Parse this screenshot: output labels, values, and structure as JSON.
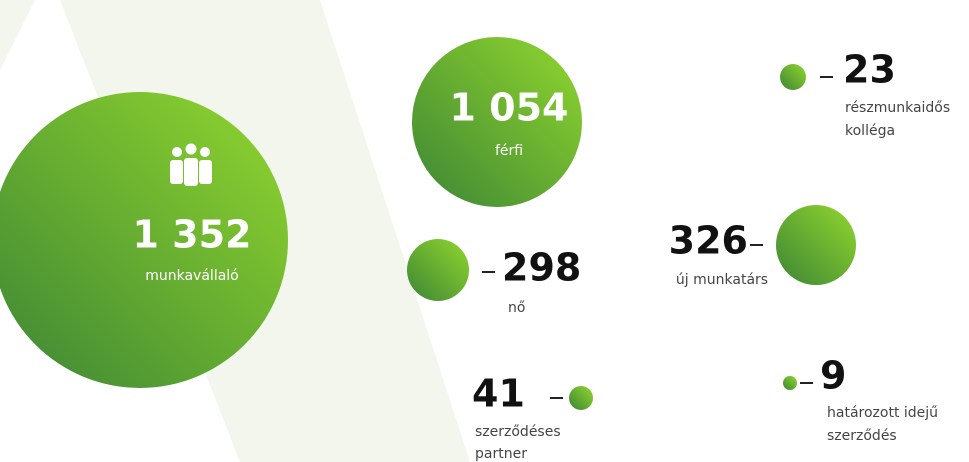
{
  "items": [
    {
      "value": "1 352",
      "label": [
        "munkavállaló"
      ]
    },
    {
      "value": "1 054",
      "label": [
        "férfi"
      ]
    },
    {
      "value": "298",
      "label": [
        "nő"
      ]
    },
    {
      "value": "23",
      "label": [
        "részmunkaidős",
        "kolléga"
      ]
    },
    {
      "value": "326",
      "label": [
        "új munkatárs"
      ]
    },
    {
      "value": "41",
      "label": [
        "szerződéses",
        "partner"
      ]
    },
    {
      "value": "9",
      "label": [
        "határozott idejű",
        "szerződés"
      ]
    }
  ]
}
